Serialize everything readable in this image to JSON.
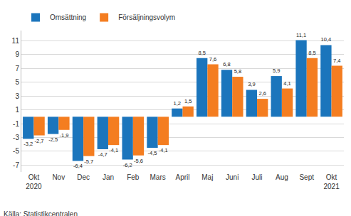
{
  "chart_data": {
    "type": "bar",
    "categories": [
      "Okt\n2020",
      "Nov",
      "Dec",
      "Jan",
      "Feb",
      "Mars",
      "April",
      "Maj",
      "Juni",
      "Juli",
      "Aug",
      "Sept",
      "Okt\n2021"
    ],
    "series": [
      {
        "name": "Omsättning",
        "color": "#1b75bc",
        "values": [
          -3.2,
          -2.5,
          -6.4,
          -4.7,
          -6.2,
          -4.5,
          1.2,
          8.5,
          6.8,
          3.9,
          5.9,
          11.1,
          10.4
        ],
        "value_labels": [
          "-3,2",
          "-2,5",
          "-6,4",
          "-4,7",
          "-6,2",
          "-4,5",
          "1,2",
          "8,5",
          "6,8",
          "3,9",
          "5,9",
          "11,1",
          "10,4"
        ]
      },
      {
        "name": "Försäljningsvolym",
        "color": "#f47d20",
        "values": [
          -2.7,
          -1.9,
          -5.7,
          -4.1,
          -5.6,
          -4.1,
          1.5,
          7.6,
          5.8,
          2.6,
          4.1,
          8.5,
          7.4
        ],
        "value_labels": [
          "-2,7",
          "-1,9",
          "-5,7",
          "-4,1",
          "-5,6",
          "-4,1",
          "1,5",
          "7,6",
          "5,8",
          "2,6",
          "4,1",
          "8,5",
          "7,4"
        ]
      }
    ],
    "ylim": [
      -8,
      12.5
    ],
    "yticks": [
      -7,
      -5,
      -3,
      -1,
      1,
      3,
      5,
      7,
      9,
      11
    ],
    "grid": true,
    "legend": "top-left",
    "data_labels": true,
    "source": "Källa: Statistikcentralen"
  }
}
